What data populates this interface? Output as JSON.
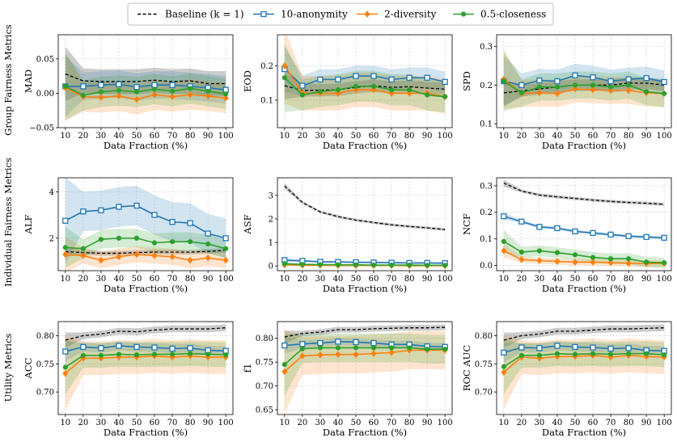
{
  "legend": {
    "entries": [
      {
        "label": "Baseline ($k = 1$)",
        "display": "Baseline (k = 1)",
        "color": "#000000",
        "style": "dashed",
        "marker": "none"
      },
      {
        "label": "10-anonymity",
        "display": "10-anonymity",
        "color": "#1f77b4",
        "style": "solid",
        "marker": "square"
      },
      {
        "label": "2-diversity",
        "display": "2-diversity",
        "color": "#ff7f0e",
        "style": "solid",
        "marker": "diamond"
      },
      {
        "label": "0.5-closeness",
        "display": "0.5-closeness",
        "color": "#2ca02c",
        "style": "solid",
        "marker": "circle"
      }
    ]
  },
  "row_labels": [
    "Group Fairness Metrics",
    "Individual Fairness Metrics",
    "Utility Metrics"
  ],
  "chart_data": [
    {
      "type": "line",
      "title": "",
      "xlabel": "Data Fraction (%)",
      "ylabel": "MAD",
      "x": [
        10,
        20,
        30,
        40,
        50,
        60,
        70,
        80,
        90,
        100
      ],
      "ylim": [
        -0.05,
        0.085
      ],
      "yticks": [
        -0.05,
        0.0,
        0.05
      ],
      "ytick_labels": [
        "−0.05",
        "0.00",
        "0.05"
      ],
      "grid": true,
      "series": [
        {
          "name": "Baseline",
          "values": [
            0.028,
            0.018,
            0.017,
            0.017,
            0.017,
            0.019,
            0.017,
            0.018,
            0.014,
            0.014
          ],
          "band": 0.018
        },
        {
          "name": "10-anonymity",
          "values": [
            0.01,
            0.01,
            0.012,
            0.013,
            0.009,
            0.012,
            0.012,
            0.01,
            0.008,
            0.005
          ],
          "band": 0.02
        },
        {
          "name": "2-diversity",
          "values": [
            0.008,
            -0.005,
            -0.006,
            -0.004,
            -0.009,
            -0.002,
            -0.005,
            -0.002,
            -0.004,
            -0.007
          ],
          "band": 0.022
        },
        {
          "name": "0.5-closeness",
          "values": [
            0.01,
            -0.003,
            0.002,
            0.004,
            0.002,
            0.006,
            0.003,
            0.007,
            0.003,
            -0.001
          ],
          "band": 0.022
        }
      ]
    },
    {
      "type": "line",
      "title": "",
      "xlabel": "Data Fraction (%)",
      "ylabel": "EOD",
      "x": [
        10,
        20,
        30,
        40,
        50,
        60,
        70,
        80,
        90,
        100
      ],
      "ylim": [
        0.02,
        0.29
      ],
      "yticks": [
        0.1,
        0.2
      ],
      "ytick_labels": [
        "0.1",
        "0.2"
      ],
      "grid": true,
      "series": [
        {
          "name": "Baseline",
          "values": [
            0.142,
            0.128,
            0.129,
            0.13,
            0.137,
            0.142,
            0.137,
            0.139,
            0.135,
            0.132
          ],
          "band": 0.018
        },
        {
          "name": "10-anonymity",
          "values": [
            0.19,
            0.142,
            0.16,
            0.16,
            0.17,
            0.17,
            0.16,
            0.165,
            0.165,
            0.153
          ],
          "band": 0.03
        },
        {
          "name": "2-diversity",
          "values": [
            0.2,
            0.12,
            0.12,
            0.12,
            0.13,
            0.13,
            0.12,
            0.12,
            0.12,
            0.11
          ],
          "band": 0.05
        },
        {
          "name": "0.5-closeness",
          "values": [
            0.165,
            0.115,
            0.125,
            0.13,
            0.14,
            0.14,
            0.13,
            0.13,
            0.115,
            0.11
          ],
          "band": 0.045
        }
      ]
    },
    {
      "type": "line",
      "title": "",
      "xlabel": "Data Fraction (%)",
      "ylabel": "SPD",
      "x": [
        10,
        20,
        30,
        40,
        50,
        60,
        70,
        80,
        90,
        100
      ],
      "ylim": [
        0.09,
        0.33
      ],
      "yticks": [
        0.1,
        0.2,
        0.3
      ],
      "ytick_labels": [
        "0.1",
        "0.2",
        "0.3"
      ],
      "grid": true,
      "series": [
        {
          "name": "Baseline",
          "values": [
            0.18,
            0.185,
            0.19,
            0.195,
            0.2,
            0.2,
            0.2,
            0.205,
            0.205,
            0.2
          ],
          "band": 0.015
        },
        {
          "name": "10-anonymity",
          "values": [
            0.21,
            0.2,
            0.212,
            0.21,
            0.225,
            0.22,
            0.21,
            0.215,
            0.218,
            0.208
          ],
          "band": 0.03
        },
        {
          "name": "2-diversity",
          "values": [
            0.215,
            0.178,
            0.18,
            0.178,
            0.19,
            0.188,
            0.186,
            0.186,
            0.18,
            0.178
          ],
          "band": 0.035
        },
        {
          "name": "0.5-closeness",
          "values": [
            0.21,
            0.18,
            0.195,
            0.195,
            0.2,
            0.2,
            0.195,
            0.2,
            0.183,
            0.178
          ],
          "band": 0.035
        }
      ]
    },
    {
      "type": "line",
      "title": "",
      "xlabel": "Data Fraction (%)",
      "ylabel": "ALF",
      "x": [
        10,
        20,
        30,
        40,
        50,
        60,
        70,
        80,
        90,
        100
      ],
      "ylim": [
        0.6,
        4.6
      ],
      "yticks": [
        2,
        4
      ],
      "ytick_labels": [
        "2",
        "4"
      ],
      "grid": true,
      "series": [
        {
          "name": "Baseline",
          "values": [
            1.42,
            1.38,
            1.35,
            1.35,
            1.38,
            1.4,
            1.4,
            1.4,
            1.43,
            1.48
          ],
          "band": 0.1
        },
        {
          "name": "10-anonymity",
          "values": [
            2.75,
            3.15,
            3.2,
            3.35,
            3.4,
            3.0,
            2.7,
            2.65,
            2.2,
            2.0
          ],
          "band": 0.85
        },
        {
          "name": "2-diversity",
          "values": [
            1.3,
            1.25,
            1.05,
            1.2,
            1.3,
            1.25,
            1.2,
            1.05,
            1.15,
            1.05
          ],
          "band": 0.35
        },
        {
          "name": "0.5-closeness",
          "values": [
            1.6,
            1.55,
            1.95,
            2.0,
            2.0,
            1.8,
            1.85,
            1.85,
            1.75,
            1.55
          ],
          "band": 0.4
        }
      ]
    },
    {
      "type": "line",
      "title": "",
      "xlabel": "Data Fraction (%)",
      "ylabel": "ASF",
      "x": [
        10,
        20,
        30,
        40,
        50,
        60,
        70,
        80,
        90,
        100
      ],
      "ylim": [
        -0.2,
        3.75
      ],
      "yticks": [
        0,
        1,
        2,
        3
      ],
      "ytick_labels": [
        "0",
        "1",
        "2",
        "3"
      ],
      "grid": true,
      "series": [
        {
          "name": "Baseline",
          "values": [
            3.4,
            2.7,
            2.3,
            2.1,
            1.95,
            1.85,
            1.75,
            1.68,
            1.62,
            1.55
          ],
          "band": 0.06
        },
        {
          "name": "10-anonymity",
          "values": [
            0.25,
            0.22,
            0.18,
            0.17,
            0.16,
            0.15,
            0.14,
            0.13,
            0.13,
            0.12
          ],
          "band": 0.04
        },
        {
          "name": "2-diversity",
          "values": [
            0.05,
            0.03,
            0.03,
            0.02,
            0.02,
            0.02,
            0.02,
            0.01,
            0.01,
            0.01
          ],
          "band": 0.02
        },
        {
          "name": "0.5-closeness",
          "values": [
            0.1,
            0.07,
            0.06,
            0.05,
            0.05,
            0.04,
            0.04,
            0.04,
            0.03,
            0.03
          ],
          "band": 0.02
        }
      ]
    },
    {
      "type": "line",
      "title": "",
      "xlabel": "Data Fraction (%)",
      "ylabel": "NCF",
      "x": [
        10,
        20,
        30,
        40,
        50,
        60,
        70,
        80,
        90,
        100
      ],
      "ylim": [
        -0.02,
        0.33
      ],
      "yticks": [
        0.0,
        0.1,
        0.2,
        0.3
      ],
      "ytick_labels": [
        "0.0",
        "0.1",
        "0.2",
        "0.3"
      ],
      "grid": true,
      "series": [
        {
          "name": "Baseline",
          "values": [
            0.31,
            0.28,
            0.265,
            0.258,
            0.252,
            0.246,
            0.241,
            0.237,
            0.234,
            0.23
          ],
          "band": 0.006
        },
        {
          "name": "10-anonymity",
          "values": [
            0.185,
            0.165,
            0.145,
            0.14,
            0.128,
            0.122,
            0.116,
            0.11,
            0.107,
            0.104
          ],
          "band": 0.006
        },
        {
          "name": "2-diversity",
          "values": [
            0.055,
            0.022,
            0.018,
            0.015,
            0.012,
            0.012,
            0.01,
            0.008,
            0.007,
            0.007
          ],
          "band": 0.012
        },
        {
          "name": "0.5-closeness",
          "values": [
            0.09,
            0.05,
            0.055,
            0.048,
            0.04,
            0.03,
            0.025,
            0.025,
            0.012,
            0.01
          ],
          "band": 0.02
        }
      ]
    },
    {
      "type": "line",
      "title": "",
      "xlabel": "Data Fraction (%)",
      "ylabel": "ACC",
      "x": [
        10,
        20,
        30,
        40,
        50,
        60,
        70,
        80,
        90,
        100
      ],
      "ylim": [
        0.66,
        0.825
      ],
      "yticks": [
        0.7,
        0.75,
        0.8
      ],
      "ytick_labels": [
        "0.70",
        "0.75",
        "0.80"
      ],
      "grid": true,
      "series": [
        {
          "name": "Baseline",
          "values": [
            0.792,
            0.8,
            0.803,
            0.808,
            0.807,
            0.81,
            0.812,
            0.812,
            0.812,
            0.814
          ],
          "band": 0.006
        },
        {
          "name": "10-anonymity",
          "values": [
            0.772,
            0.78,
            0.778,
            0.782,
            0.78,
            0.779,
            0.777,
            0.778,
            0.774,
            0.773
          ],
          "band": 0.008
        },
        {
          "name": "2-diversity",
          "values": [
            0.733,
            0.76,
            0.76,
            0.762,
            0.762,
            0.764,
            0.762,
            0.764,
            0.762,
            0.762
          ],
          "band": 0.03
        },
        {
          "name": "0.5-closeness",
          "values": [
            0.744,
            0.765,
            0.765,
            0.767,
            0.766,
            0.767,
            0.767,
            0.768,
            0.767,
            0.766
          ],
          "band": 0.022
        }
      ]
    },
    {
      "type": "line",
      "title": "",
      "xlabel": "Data Fraction (%)",
      "ylabel": "f1",
      "x": [
        10,
        20,
        30,
        40,
        50,
        60,
        70,
        80,
        90,
        100
      ],
      "ylim": [
        0.64,
        0.835
      ],
      "yticks": [
        0.65,
        0.7,
        0.75,
        0.8
      ],
      "ytick_labels": [
        "0.65",
        "0.70",
        "0.75",
        "0.80"
      ],
      "grid": true,
      "series": [
        {
          "name": "Baseline",
          "values": [
            0.803,
            0.81,
            0.813,
            0.818,
            0.818,
            0.82,
            0.821,
            0.822,
            0.822,
            0.823
          ],
          "band": 0.006
        },
        {
          "name": "10-anonymity",
          "values": [
            0.785,
            0.788,
            0.79,
            0.793,
            0.792,
            0.79,
            0.787,
            0.787,
            0.783,
            0.782
          ],
          "band": 0.008
        },
        {
          "name": "2-diversity",
          "values": [
            0.73,
            0.763,
            0.765,
            0.766,
            0.766,
            0.768,
            0.77,
            0.775,
            0.775,
            0.775
          ],
          "band": 0.04
        },
        {
          "name": "0.5-closeness",
          "values": [
            0.745,
            0.778,
            0.78,
            0.78,
            0.78,
            0.78,
            0.78,
            0.78,
            0.777,
            0.777
          ],
          "band": 0.03
        }
      ]
    },
    {
      "type": "line",
      "title": "",
      "xlabel": "Data Fraction (%)",
      "ylabel": "ROC AUC",
      "x": [
        10,
        20,
        30,
        40,
        50,
        60,
        70,
        80,
        90,
        100
      ],
      "ylim": [
        0.66,
        0.825
      ],
      "yticks": [
        0.7,
        0.75,
        0.8
      ],
      "ytick_labels": [
        "0.70",
        "0.75",
        "0.80"
      ],
      "grid": true,
      "series": [
        {
          "name": "Baseline",
          "values": [
            0.792,
            0.8,
            0.803,
            0.808,
            0.808,
            0.81,
            0.812,
            0.812,
            0.813,
            0.814
          ],
          "band": 0.006
        },
        {
          "name": "10-anonymity",
          "values": [
            0.77,
            0.779,
            0.778,
            0.782,
            0.78,
            0.779,
            0.777,
            0.778,
            0.774,
            0.773
          ],
          "band": 0.008
        },
        {
          "name": "2-diversity",
          "values": [
            0.735,
            0.762,
            0.76,
            0.763,
            0.763,
            0.765,
            0.762,
            0.765,
            0.763,
            0.762
          ],
          "band": 0.03
        },
        {
          "name": "0.5-closeness",
          "values": [
            0.745,
            0.765,
            0.765,
            0.768,
            0.767,
            0.768,
            0.767,
            0.768,
            0.768,
            0.766
          ],
          "band": 0.022
        }
      ]
    }
  ]
}
